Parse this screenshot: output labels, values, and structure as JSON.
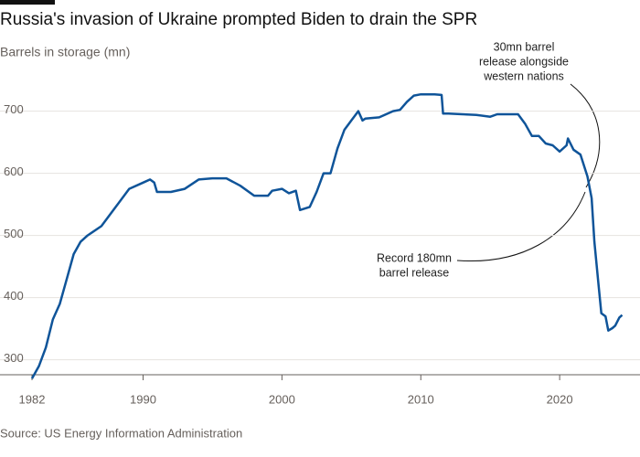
{
  "chart_data": {
    "type": "line",
    "title": "Russia's invasion of Ukraine prompted Biden to drain the SPR",
    "subtitle": "Barrels in storage (mn)",
    "source": "Source: US Energy Information Administration",
    "annotations": [
      {
        "lines": [
          "30mn barrel",
          "release alongside",
          "western nations"
        ]
      },
      {
        "lines": [
          "Record 180mn",
          "barrel release"
        ]
      }
    ],
    "x": [
      1982.0,
      1982.5,
      1983,
      1983.5,
      1984,
      1984.5,
      1985,
      1985.5,
      1986,
      1987,
      1988,
      1989,
      1990,
      1990.5,
      1990.8,
      1991,
      1992,
      1993,
      1994,
      1995,
      1996,
      1997,
      1998,
      1999,
      1999.3,
      2000,
      2000.5,
      2001,
      2001.3,
      2002,
      2002.5,
      2003,
      2003.5,
      2004,
      2004.5,
      2005,
      2005.5,
      2005.8,
      2006,
      2007,
      2008,
      2008.5,
      2009,
      2009.5,
      2010,
      2011,
      2011.5,
      2011.6,
      2012,
      2013,
      2014,
      2015,
      2015.5,
      2016,
      2017,
      2017.5,
      2018,
      2018.5,
      2019,
      2019.5,
      2020,
      2020.5,
      2020.6,
      2021,
      2021.5,
      2022,
      2022.3,
      2022.5,
      2022.8,
      2023,
      2023.3,
      2023.5,
      2023.8,
      2024,
      2024.3,
      2024.5
    ],
    "series": [
      {
        "name": "SPR",
        "color": "#0f5499",
        "values": [
          270,
          290,
          320,
          365,
          390,
          430,
          470,
          490,
          500,
          515,
          545,
          575,
          585,
          590,
          585,
          570,
          570,
          575,
          590,
          592,
          592,
          580,
          564,
          564,
          572,
          575,
          568,
          572,
          541,
          546,
          570,
          600,
          600,
          640,
          670,
          685,
          700,
          685,
          688,
          690,
          700,
          702,
          715,
          725,
          727,
          727,
          726,
          696,
          696,
          695,
          694,
          691,
          695,
          695,
          695,
          680,
          660,
          660,
          648,
          645,
          635,
          645,
          656,
          638,
          630,
          595,
          560,
          490,
          420,
          375,
          370,
          347,
          351,
          355,
          368,
          372
        ]
      }
    ],
    "xlim": [
      1982,
      2024.6
    ],
    "xticks": [
      1982,
      1990,
      2000,
      2010,
      2020
    ],
    "ylim": [
      276,
      745
    ],
    "yticks": [
      300,
      400,
      500,
      600,
      700
    ],
    "grid": true
  }
}
